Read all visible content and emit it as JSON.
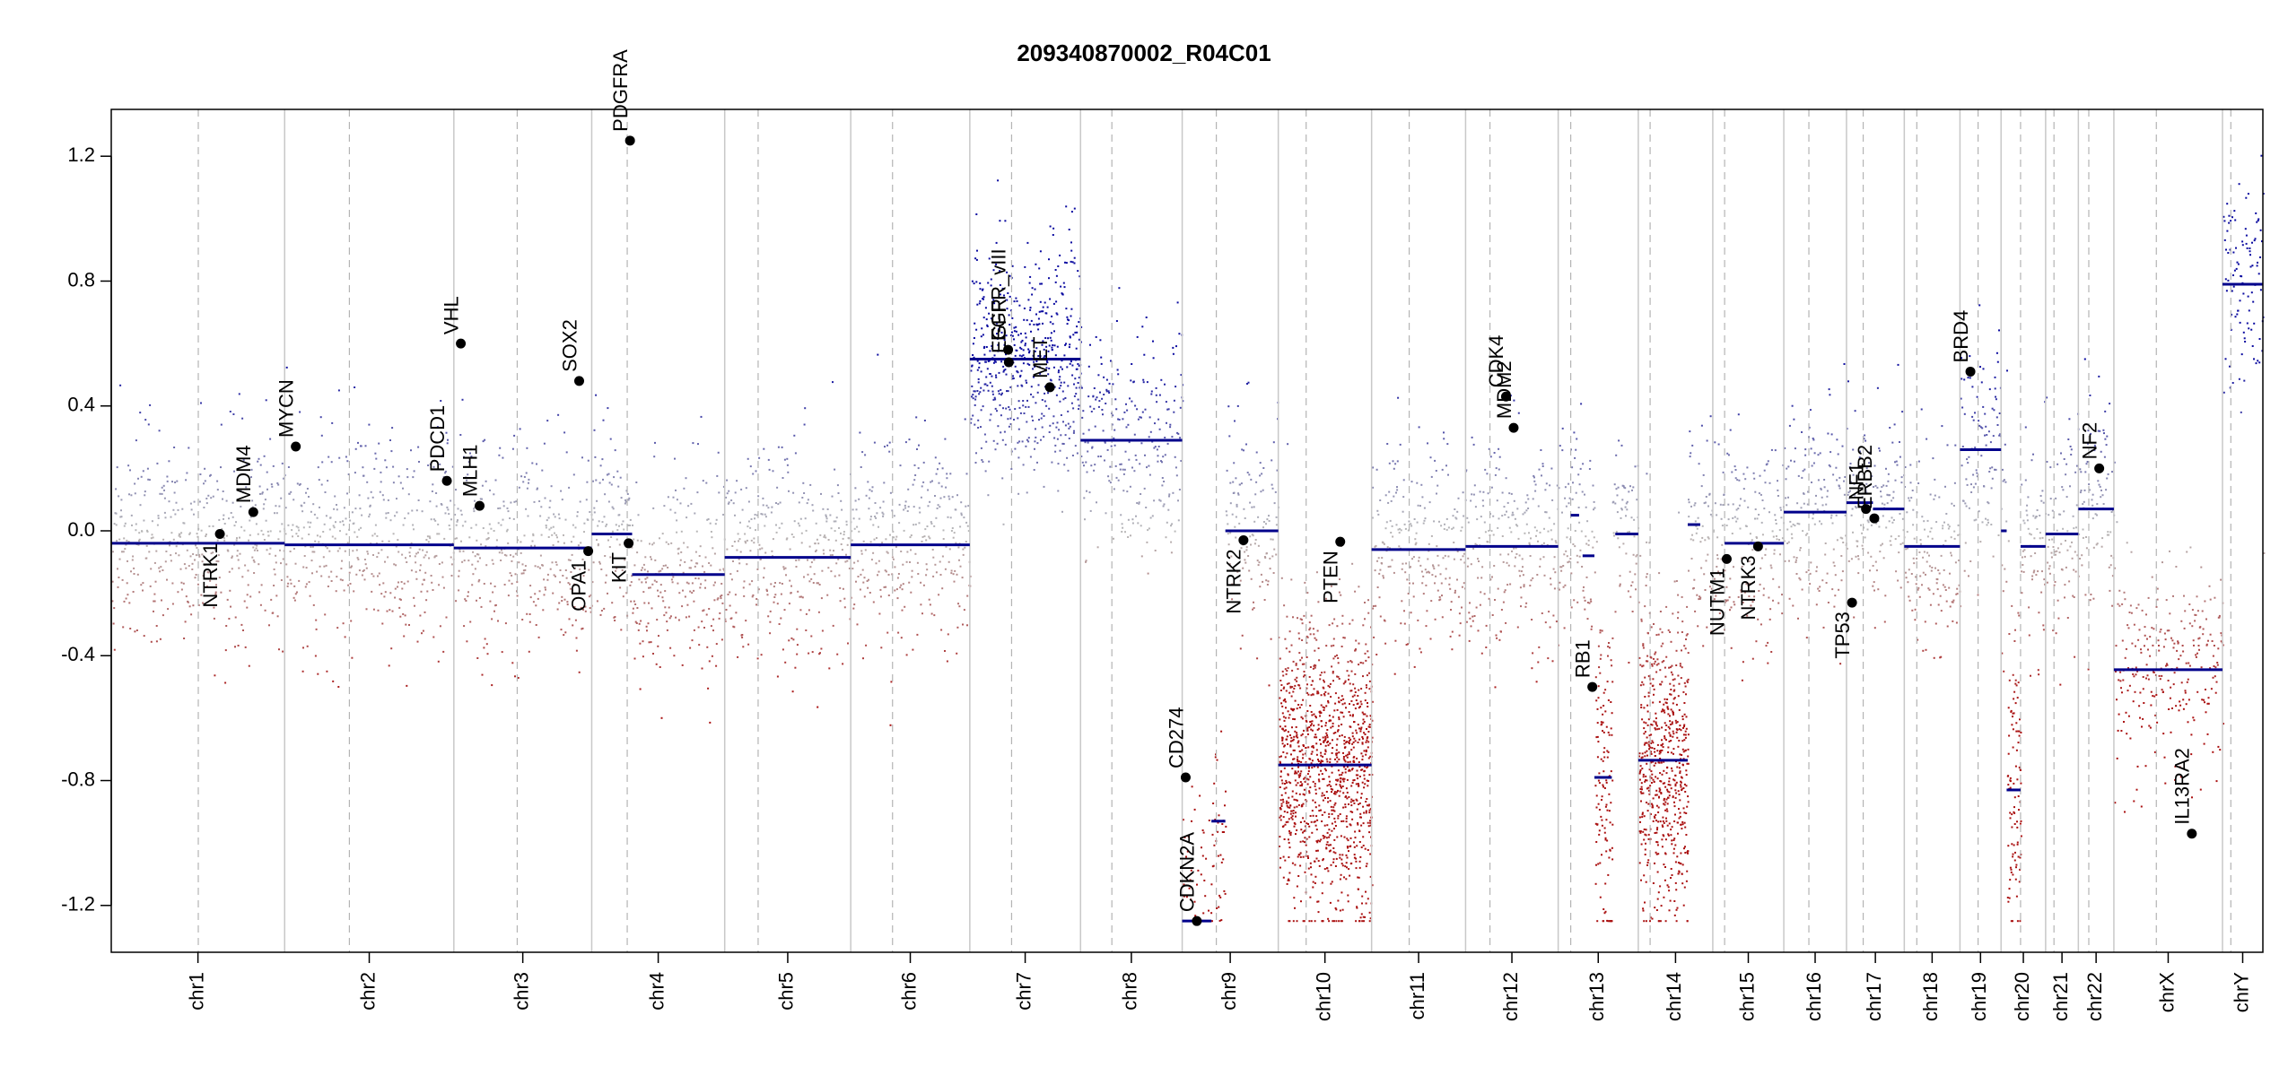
{
  "chart_data": {
    "type": "scatter",
    "title": "209340870002_R04C01",
    "xlabel": "",
    "ylabel": "",
    "ylim": [
      -1.35,
      1.35
    ],
    "y_ticks": [
      1.2,
      0.8,
      0.4,
      0.0,
      -0.4,
      -0.8,
      -1.2
    ],
    "y_tick_labels": [
      "1.2",
      "0.8",
      "0.4",
      "0.0",
      "-0.4",
      "-0.8",
      "-1.2"
    ],
    "grid": false,
    "x_axis_unit": "cumulative genome position (Mb)",
    "colors": {
      "positive": "#0a0aa0",
      "negative": "#aa1010",
      "neutral": "#b8b8b8",
      "segment": "#00008b",
      "separator": "#c8c8c8",
      "centromere": "#b4b4b4",
      "gene_point": "#000000"
    },
    "chromosomes": [
      {
        "name": "chr1",
        "start": 0,
        "end": 249,
        "centromere": 125
      },
      {
        "name": "chr2",
        "start": 249,
        "end": 492,
        "centromere": 342
      },
      {
        "name": "chr3",
        "start": 492,
        "end": 690,
        "centromere": 583
      },
      {
        "name": "chr4",
        "start": 690,
        "end": 881,
        "centromere": 741
      },
      {
        "name": "chr5",
        "start": 881,
        "end": 1062,
        "centromere": 929
      },
      {
        "name": "chr6",
        "start": 1062,
        "end": 1233,
        "centromere": 1122
      },
      {
        "name": "chr7",
        "start": 1233,
        "end": 1392,
        "centromere": 1293
      },
      {
        "name": "chr8",
        "start": 1392,
        "end": 1538,
        "centromere": 1437
      },
      {
        "name": "chr9",
        "start": 1538,
        "end": 1676,
        "centromere": 1587
      },
      {
        "name": "chr10",
        "start": 1676,
        "end": 1810,
        "centromere": 1716
      },
      {
        "name": "chr11",
        "start": 1810,
        "end": 1945,
        "centromere": 1864
      },
      {
        "name": "chr12",
        "start": 1945,
        "end": 2078,
        "centromere": 1980
      },
      {
        "name": "chr13",
        "start": 2078,
        "end": 2193,
        "centromere": 2096
      },
      {
        "name": "chr14",
        "start": 2193,
        "end": 2300,
        "centromere": 2210
      },
      {
        "name": "chr15",
        "start": 2300,
        "end": 2402,
        "centromere": 2317
      },
      {
        "name": "chr16",
        "start": 2402,
        "end": 2492,
        "centromere": 2438
      },
      {
        "name": "chr17",
        "start": 2492,
        "end": 2575,
        "centromere": 2516
      },
      {
        "name": "chr18",
        "start": 2575,
        "end": 2655,
        "centromere": 2593
      },
      {
        "name": "chr19",
        "start": 2655,
        "end": 2714,
        "centromere": 2681
      },
      {
        "name": "chr20",
        "start": 2714,
        "end": 2778,
        "centromere": 2742
      },
      {
        "name": "chr21",
        "start": 2778,
        "end": 2825,
        "centromere": 2790
      },
      {
        "name": "chr22",
        "start": 2825,
        "end": 2876,
        "centromere": 2840
      },
      {
        "name": "chrX",
        "start": 2876,
        "end": 3032,
        "centromere": 2937
      },
      {
        "name": "chrY",
        "start": 3032,
        "end": 3090,
        "centromere": 3044
      }
    ],
    "segments": [
      {
        "x0": 0,
        "x1": 249,
        "y": -0.04
      },
      {
        "x0": 249,
        "x1": 492,
        "y": -0.045
      },
      {
        "x0": 492,
        "x1": 690,
        "y": -0.055
      },
      {
        "x0": 690,
        "x1": 748,
        "y": -0.01
      },
      {
        "x0": 748,
        "x1": 881,
        "y": -0.14
      },
      {
        "x0": 881,
        "x1": 1062,
        "y": -0.085
      },
      {
        "x0": 1062,
        "x1": 1233,
        "y": -0.045
      },
      {
        "x0": 1233,
        "x1": 1392,
        "y": 0.55
      },
      {
        "x0": 1392,
        "x1": 1538,
        "y": 0.29
      },
      {
        "x0": 1538,
        "x1": 1580,
        "y": -1.25
      },
      {
        "x0": 1580,
        "x1": 1600,
        "y": -0.93
      },
      {
        "x0": 1600,
        "x1": 1676,
        "y": 0.0
      },
      {
        "x0": 1676,
        "x1": 1810,
        "y": -0.75
      },
      {
        "x0": 1810,
        "x1": 1945,
        "y": -0.06
      },
      {
        "x0": 1945,
        "x1": 2078,
        "y": -0.05
      },
      {
        "x0": 2096,
        "x1": 2108,
        "y": 0.05
      },
      {
        "x0": 2113,
        "x1": 2130,
        "y": -0.08
      },
      {
        "x0": 2130,
        "x1": 2155,
        "y": -0.79
      },
      {
        "x0": 2160,
        "x1": 2193,
        "y": -0.01
      },
      {
        "x0": 2193,
        "x1": 2264,
        "y": -0.735
      },
      {
        "x0": 2264,
        "x1": 2282,
        "y": 0.02
      },
      {
        "x0": 2317,
        "x1": 2402,
        "y": -0.04
      },
      {
        "x0": 2402,
        "x1": 2492,
        "y": 0.06
      },
      {
        "x0": 2492,
        "x1": 2530,
        "y": 0.09
      },
      {
        "x0": 2530,
        "x1": 2575,
        "y": 0.07
      },
      {
        "x0": 2575,
        "x1": 2655,
        "y": -0.05
      },
      {
        "x0": 2655,
        "x1": 2714,
        "y": 0.26
      },
      {
        "x0": 2714,
        "x1": 2722,
        "y": 0.0
      },
      {
        "x0": 2722,
        "x1": 2742,
        "y": -0.83
      },
      {
        "x0": 2742,
        "x1": 2778,
        "y": -0.05
      },
      {
        "x0": 2778,
        "x1": 2825,
        "y": -0.01
      },
      {
        "x0": 2825,
        "x1": 2876,
        "y": 0.07
      },
      {
        "x0": 2876,
        "x1": 3032,
        "y": -0.445
      },
      {
        "x0": 3032,
        "x1": 3090,
        "y": 0.79
      }
    ],
    "genes": [
      {
        "name": "NTRK1",
        "x": 156,
        "y": -0.01
      },
      {
        "name": "MDM4",
        "x": 204,
        "y": 0.06
      },
      {
        "name": "MYCN",
        "x": 265,
        "y": 0.27
      },
      {
        "name": "PDCD1",
        "x": 482,
        "y": 0.16
      },
      {
        "name": "VHL",
        "x": 502,
        "y": 0.6
      },
      {
        "name": "MLH1",
        "x": 529,
        "y": 0.08
      },
      {
        "name": "SOX2",
        "x": 672,
        "y": 0.48
      },
      {
        "name": "OPA1",
        "x": 685,
        "y": -0.065
      },
      {
        "name": "KIT",
        "x": 743,
        "y": -0.04
      },
      {
        "name": "PDGFRA",
        "x": 745,
        "y": 1.25
      },
      {
        "name": "EGFR_vIII",
        "x": 1288,
        "y": 0.58
      },
      {
        "name": "EGFR",
        "x": 1289,
        "y": 0.54
      },
      {
        "name": "MET",
        "x": 1348,
        "y": 0.46
      },
      {
        "name": "CD274",
        "x": 1543,
        "y": -0.79
      },
      {
        "name": "CDKN2A",
        "x": 1559,
        "y": -1.25
      },
      {
        "name": "NTRK2",
        "x": 1626,
        "y": -0.03
      },
      {
        "name": "PTEN",
        "x": 1765,
        "y": -0.035
      },
      {
        "name": "CDK4",
        "x": 2003,
        "y": 0.43
      },
      {
        "name": "MDM2",
        "x": 2014,
        "y": 0.33
      },
      {
        "name": "RB1",
        "x": 2127,
        "y": -0.5
      },
      {
        "name": "NUTM1",
        "x": 2320,
        "y": -0.09
      },
      {
        "name": "NTRK3",
        "x": 2365,
        "y": -0.05
      },
      {
        "name": "TP53",
        "x": 2500,
        "y": -0.23
      },
      {
        "name": "NF1",
        "x": 2520,
        "y": 0.07
      },
      {
        "name": "ERBB2",
        "x": 2532,
        "y": 0.04
      },
      {
        "name": "BRD4",
        "x": 2670,
        "y": 0.51
      },
      {
        "name": "NF2",
        "x": 2855,
        "y": 0.2
      },
      {
        "name": "IL13RA2",
        "x": 2988,
        "y": -0.97
      }
    ],
    "gene_labels": [
      {
        "text": "NTRK1",
        "anchor": "end"
      },
      {
        "text": "MDM4",
        "anchor": "start"
      },
      {
        "text": "MYCN",
        "anchor": "start"
      },
      {
        "text": "PDCD1",
        "anchor": "start"
      },
      {
        "text": "VHL",
        "anchor": "start"
      },
      {
        "text": "MLH1",
        "anchor": "start"
      },
      {
        "text": "SOX2",
        "anchor": "start"
      },
      {
        "text": "OPA1",
        "anchor": "end"
      },
      {
        "text": "KIT",
        "anchor": "end"
      },
      {
        "text": "PDGFRA",
        "anchor": "start"
      },
      {
        "text": "EGFR_vIII",
        "anchor": "start"
      },
      {
        "text": "EGFR",
        "anchor": "start"
      },
      {
        "text": "MET",
        "anchor": "start"
      },
      {
        "text": "CD274",
        "anchor": "start"
      },
      {
        "text": "CDKN2A",
        "anchor": "start"
      },
      {
        "text": "NTRK2",
        "anchor": "end"
      },
      {
        "text": "PTEN",
        "anchor": "end"
      },
      {
        "text": "CDK4",
        "anchor": "start"
      },
      {
        "text": "MDM2",
        "anchor": "start"
      },
      {
        "text": "RB1",
        "anchor": "start"
      },
      {
        "text": "NUTM1",
        "anchor": "end"
      },
      {
        "text": "NTRK3",
        "anchor": "end"
      },
      {
        "text": "TP53",
        "anchor": "end"
      },
      {
        "text": "NF1",
        "anchor": "start"
      },
      {
        "text": "ERBB2",
        "anchor": "start"
      },
      {
        "text": "BRD4",
        "anchor": "start"
      },
      {
        "text": "NF2",
        "anchor": "start"
      },
      {
        "text": "IL13RA2",
        "anchor": "start"
      }
    ],
    "probe_density": {
      "per_mb": 1.7,
      "noise_sd": 0.17,
      "special_regions": [
        {
          "x0": 1676,
          "x1": 1810,
          "noise_sd": 0.24,
          "dense": 5,
          "floor": -1.25
        },
        {
          "x0": 2193,
          "x1": 2264,
          "noise_sd": 0.24,
          "dense": 5,
          "floor": -1.25
        },
        {
          "x0": 2130,
          "x1": 2155,
          "noise_sd": 0.3,
          "dense": 3,
          "floor": -1.25
        },
        {
          "x0": 2722,
          "x1": 2742,
          "noise_sd": 0.25,
          "dense": 3,
          "floor": -1.25
        },
        {
          "x0": 1233,
          "x1": 1392,
          "noise_sd": 0.18,
          "dense": 2
        }
      ]
    }
  }
}
